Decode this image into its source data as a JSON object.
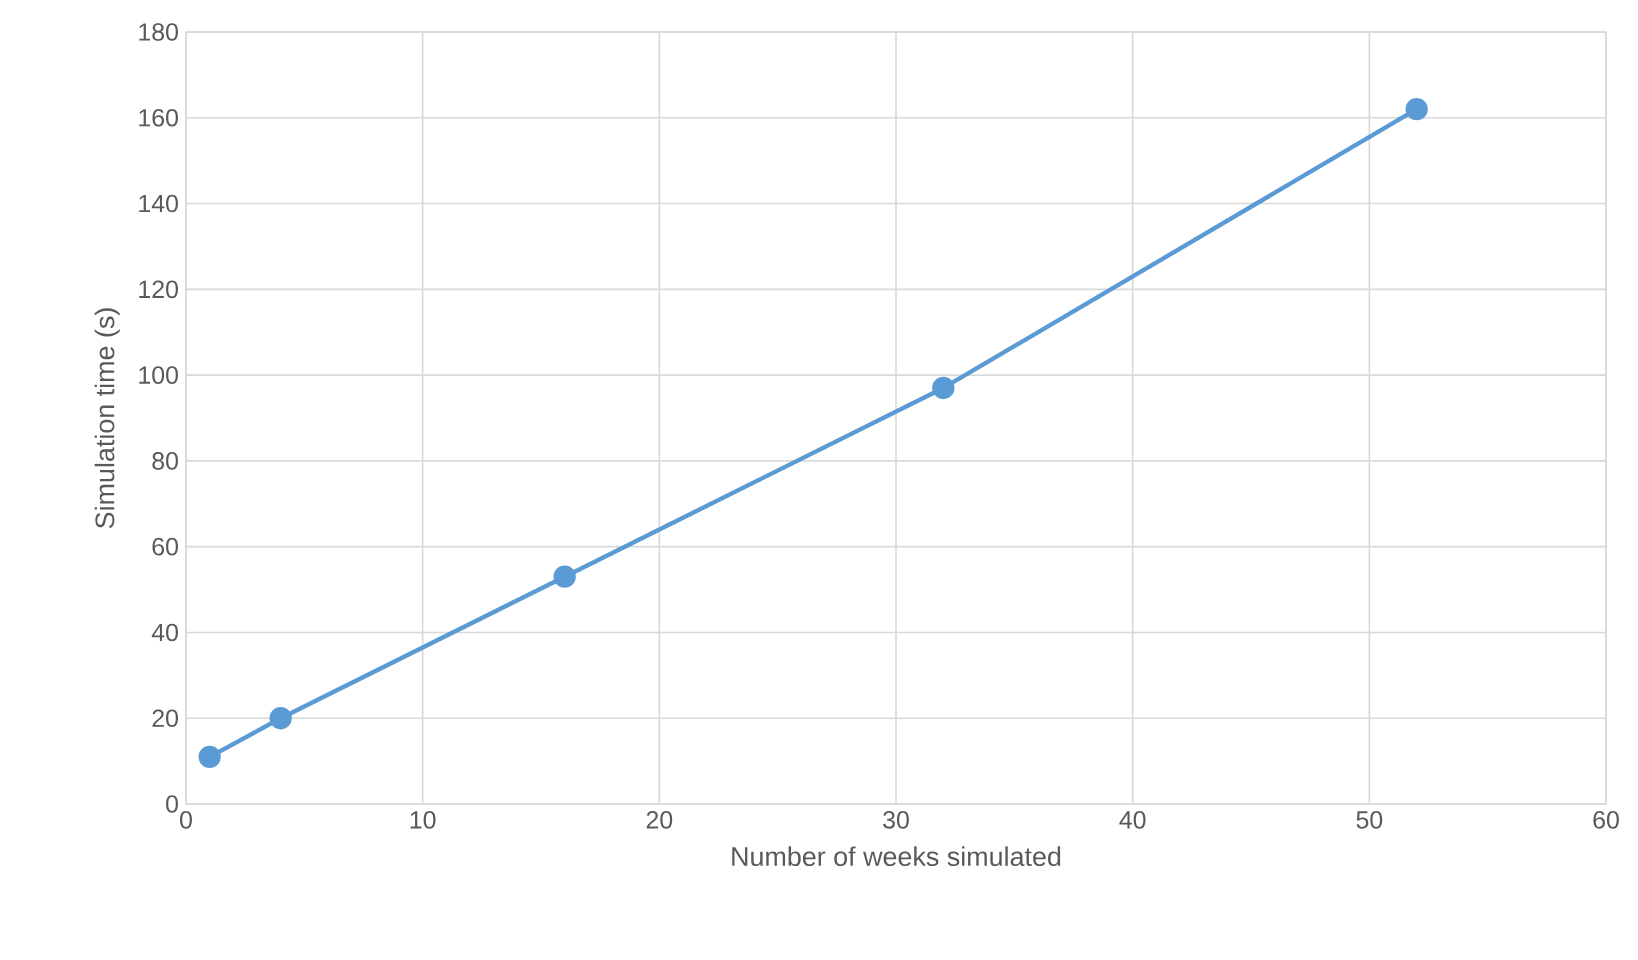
{
  "chart_data": {
    "type": "line",
    "xlabel": "Number of weeks simulated",
    "ylabel": "Simulation time (s)",
    "x": [
      1,
      4,
      16,
      32,
      52
    ],
    "series": [
      {
        "color": "#5b9bd5",
        "values": [
          11,
          20,
          53,
          97,
          162
        ]
      }
    ],
    "xlim": [
      0,
      60
    ],
    "xticks": [
      0,
      10,
      20,
      30,
      40,
      50,
      60
    ],
    "ylim": [
      0,
      180
    ],
    "yticks": [
      0,
      20,
      40,
      60,
      80,
      100,
      120,
      140,
      160,
      180
    ],
    "grid": true,
    "marker": "circle",
    "line_style": "solid"
  }
}
